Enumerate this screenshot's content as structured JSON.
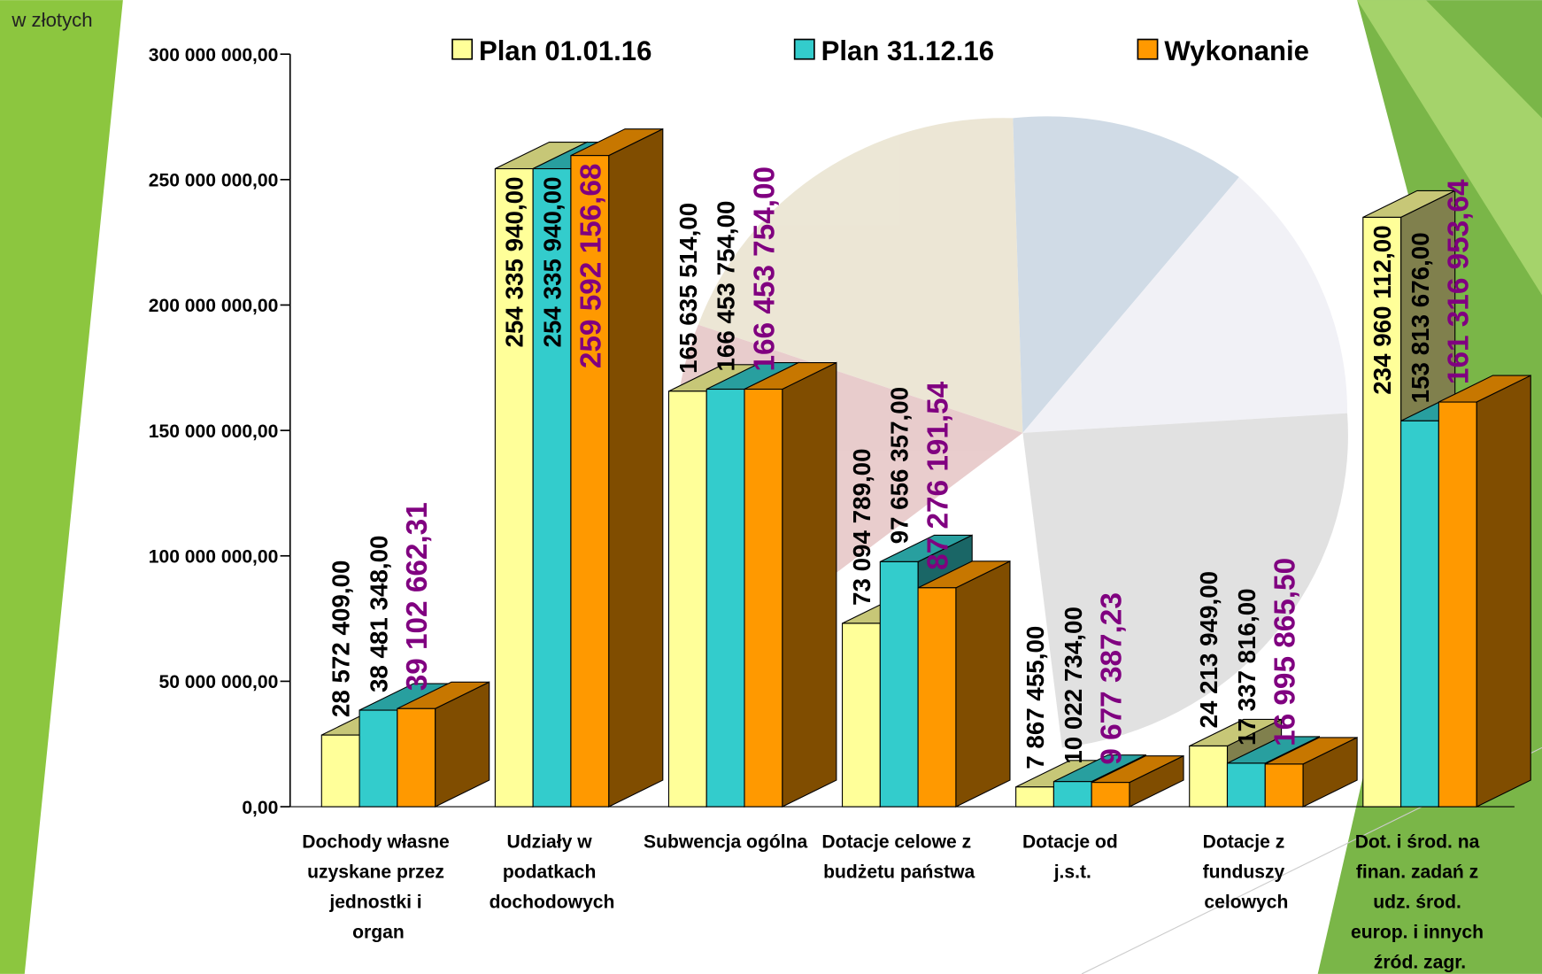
{
  "chart_data": {
    "type": "bar3d",
    "unit_label": "w złotych",
    "categories": [
      "Dochody własne uzyskane przez jednostki i organ",
      "Udziały w podatkach dochodowych",
      "Subwencja ogólna",
      "Dotacje celowe z budżetu państwa",
      "Dotacje od j.s.t.",
      "Dotacje z funduszy celowych",
      "Dot. i środ. na finan. zadań z udz. środ. europ. i innych źród. zagr."
    ],
    "series": [
      {
        "name": "Plan 01.01.16",
        "color": "#ffff99",
        "values": [
          28572409.0,
          254335940.0,
          165635514.0,
          73094789.0,
          7867455.0,
          24213949.0,
          234960112.0
        ],
        "value_labels": [
          "28 572 409,00",
          "254 335 940,00",
          "165 635 514,00",
          "73 094 789,00",
          "7 867 455,00",
          "24 213 949,00",
          "234 960 112,00"
        ]
      },
      {
        "name": "Plan 31.12.16",
        "color": "#33cccc",
        "values": [
          38481348.0,
          254335940.0,
          166453754.0,
          97656357.0,
          10022734.0,
          17337816.0,
          153813676.0
        ],
        "value_labels": [
          "38 481 348,00",
          "254 335 940,00",
          "166 453 754,00",
          "97 656 357,00",
          "10 022 734,00",
          "17 337 816,00",
          "153 813 676,00"
        ]
      },
      {
        "name": "Wykonanie",
        "color": "#ff9900",
        "values": [
          39102662.31,
          259592156.68,
          166453754.0,
          87276191.54,
          9677387.23,
          16995865.5,
          161316953.64
        ],
        "value_labels": [
          "39 102 662,31",
          "259 592 156,68",
          "166 453 754,00",
          "87 276 191,54",
          "9 677 387,23",
          "16 995 865,50",
          "161 316 953,64"
        ]
      }
    ],
    "value_label_colors": [
      "#000000",
      "#000000",
      "#800080"
    ],
    "ylim": [
      0,
      300000000
    ],
    "yticks": [
      {
        "value": 0,
        "label": "0,00"
      },
      {
        "value": 50000000,
        "label": "50 000 000,00"
      },
      {
        "value": 100000000,
        "label": "100 000 000,00"
      },
      {
        "value": 150000000,
        "label": "150 000 000,00"
      },
      {
        "value": 200000000,
        "label": "200 000 000,00"
      },
      {
        "value": 250000000,
        "label": "250 000 000,00"
      },
      {
        "value": 300000000,
        "label": "300 000 000,00"
      }
    ]
  }
}
